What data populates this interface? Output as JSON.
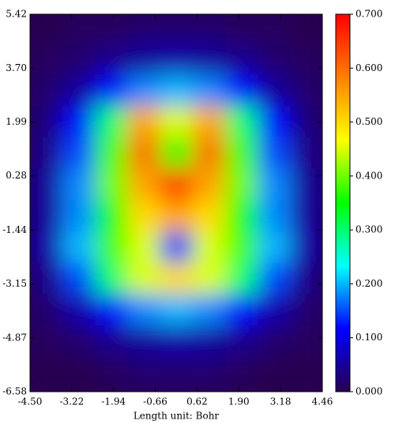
{
  "chart_data": {
    "type": "heatmap",
    "x_label": "Length unit: Bohr",
    "xlim": [
      -4.5,
      4.46
    ],
    "ylim": [
      -6.58,
      5.42
    ],
    "xticks": [
      {
        "value": -4.5,
        "label": "-4.50"
      },
      {
        "value": -3.22,
        "label": "-3.22"
      },
      {
        "value": -1.94,
        "label": "-1.94"
      },
      {
        "value": -0.66,
        "label": "-0.66"
      },
      {
        "value": 0.62,
        "label": "0.62"
      },
      {
        "value": 1.9,
        "label": "1.90"
      },
      {
        "value": 3.18,
        "label": "3.18"
      },
      {
        "value": 4.46,
        "label": "4.46"
      }
    ],
    "yticks": [
      {
        "value": 5.42,
        "label": "5.42"
      },
      {
        "value": 3.7,
        "label": "3.70"
      },
      {
        "value": 1.99,
        "label": "1.99"
      },
      {
        "value": 0.28,
        "label": "0.28"
      },
      {
        "value": -1.44,
        "label": "-1.44"
      },
      {
        "value": -3.15,
        "label": "-3.15"
      },
      {
        "value": -4.87,
        "label": "-4.87"
      },
      {
        "value": -6.58,
        "label": "-6.58"
      }
    ],
    "clim": [
      0,
      0.7
    ],
    "cticks": [
      {
        "value": 0,
        "label": "0.000"
      },
      {
        "value": 0.1,
        "label": "0.100"
      },
      {
        "value": 0.2,
        "label": "0.200"
      },
      {
        "value": 0.3,
        "label": "0.300"
      },
      {
        "value": 0.4,
        "label": "0.400"
      },
      {
        "value": 0.5,
        "label": "0.500"
      },
      {
        "value": 0.6,
        "label": "0.600"
      },
      {
        "value": 0.7,
        "label": "0.700"
      }
    ],
    "colormap": [
      "#280050",
      "#0000ff",
      "#00ffff",
      "#00ff00",
      "#ffff00",
      "#ff8000",
      "#ff0000"
    ],
    "x": [
      -4,
      -3,
      -2,
      -1,
      0,
      1,
      2,
      3,
      4
    ],
    "y": [
      5,
      4,
      3,
      2,
      1,
      0,
      -1,
      -2,
      -3,
      -4,
      -5,
      -6
    ],
    "z": [
      [
        0,
        0.01,
        0.01,
        0.02,
        0.02,
        0.02,
        0.01,
        0.01,
        0
      ],
      [
        0.01,
        0.02,
        0.04,
        0.05,
        0.06,
        0.05,
        0.04,
        0.02,
        0.01
      ],
      [
        0.02,
        0.05,
        0.12,
        0.18,
        0.2,
        0.18,
        0.12,
        0.05,
        0.02
      ],
      [
        0.03,
        0.12,
        0.3,
        0.55,
        0.45,
        0.55,
        0.3,
        0.12,
        0.03
      ],
      [
        0.04,
        0.15,
        0.38,
        0.6,
        0.35,
        0.6,
        0.38,
        0.15,
        0.04
      ],
      [
        0.05,
        0.18,
        0.4,
        0.55,
        0.65,
        0.55,
        0.4,
        0.18,
        0.05
      ],
      [
        0.05,
        0.18,
        0.35,
        0.5,
        0.55,
        0.5,
        0.35,
        0.18,
        0.05
      ],
      [
        0.06,
        0.2,
        0.38,
        0.45,
        0.15,
        0.45,
        0.38,
        0.2,
        0.06
      ],
      [
        0.04,
        0.15,
        0.3,
        0.45,
        0.5,
        0.45,
        0.3,
        0.15,
        0.04
      ],
      [
        0.02,
        0.06,
        0.12,
        0.18,
        0.2,
        0.18,
        0.12,
        0.06,
        0.02
      ],
      [
        0.01,
        0.02,
        0.04,
        0.05,
        0.06,
        0.05,
        0.04,
        0.02,
        0.01
      ],
      [
        0,
        0,
        0.01,
        0.02,
        0.02,
        0.02,
        0.01,
        0,
        0
      ]
    ]
  }
}
